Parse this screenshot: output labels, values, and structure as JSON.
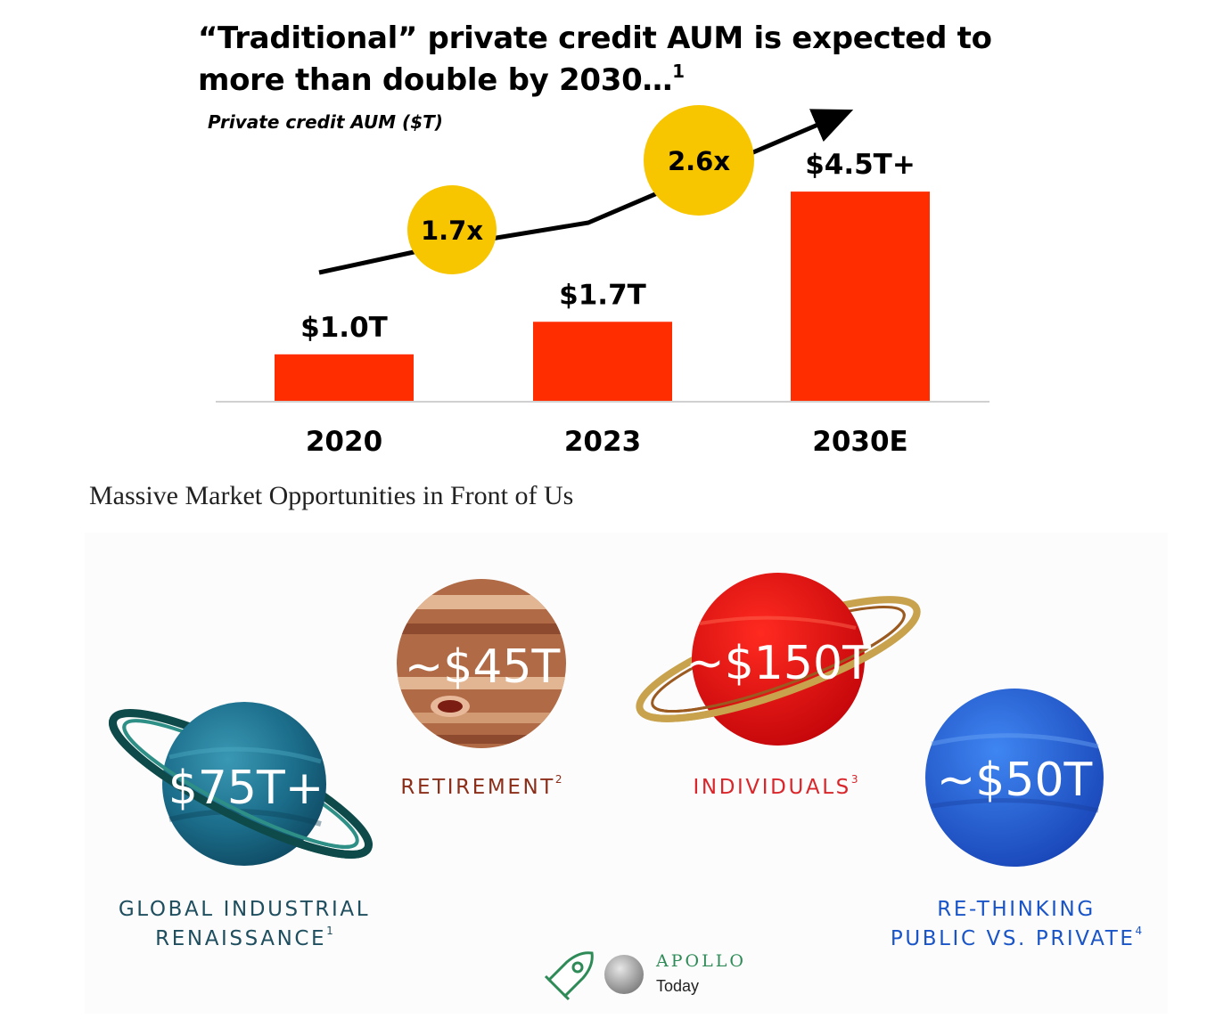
{
  "headline": {
    "title_line1": "“Traditional” private credit AUM is expected to",
    "title_line2": "more than double by 2030…",
    "footnote": "1",
    "subtitle": "Private credit AUM ($T)"
  },
  "chart_data": {
    "type": "bar",
    "ylabel": "Private credit AUM ($T)",
    "categories": [
      "2020",
      "2023",
      "2030E"
    ],
    "values": [
      1.0,
      1.7,
      4.5
    ],
    "data_labels": [
      "$1.0T",
      "$1.7T",
      "$4.5T+"
    ],
    "growth_callouts": [
      "1.7x",
      "2.6x"
    ],
    "colors": {
      "bar": "#ff2d00",
      "callout": "#f7c600",
      "arrow": "#000000"
    }
  },
  "opportunities": {
    "title": "Massive Market Opportunities in Front of Us",
    "planets": [
      {
        "value": "$75T+",
        "label_lines": [
          "GLOBAL INDUSTRIAL",
          "RENAISSANCE"
        ],
        "footnote": "1",
        "label_color": "#1f4e5f"
      },
      {
        "value": "~$45T",
        "label_lines": [
          "RETIREMENT"
        ],
        "footnote": "2",
        "label_color": "#8b2e1a"
      },
      {
        "value": "~$150T",
        "label_lines": [
          "INDIVIDUALS"
        ],
        "footnote": "3",
        "label_color": "#d9262b"
      },
      {
        "value": "~$50T",
        "label_lines": [
          "RE-THINKING",
          "PUBLIC VS. PRIVATE"
        ],
        "footnote": "4",
        "label_color": "#1a55c7"
      }
    ]
  },
  "brand": {
    "name": "APOLLO",
    "sub": "Today",
    "icons": [
      "rocket-icon",
      "moon-icon"
    ]
  }
}
